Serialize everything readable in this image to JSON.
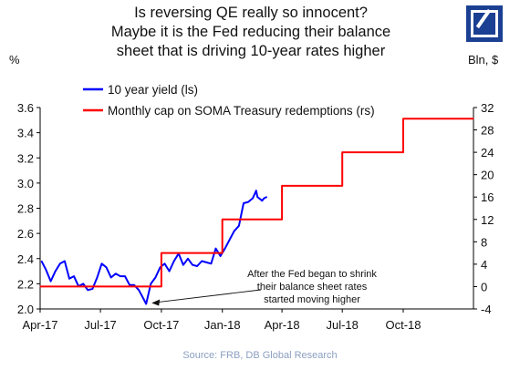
{
  "title_lines": [
    "Is reversing QE really so innocent?",
    "Maybe it is the Fed reducing their balance",
    "sheet that is driving 10-year rates higher"
  ],
  "left_unit": "%",
  "right_unit": "Bln, $",
  "source": "Source: FRB, DB Global Research",
  "logo_icon": "deutsche-bank-logo",
  "colors": {
    "yield": "#0000ff",
    "cap": "#ff0000",
    "logo": "#1a3f93"
  },
  "chart_data": {
    "type": "line",
    "x_tick_labels": [
      "Apr-17",
      "Jul-17",
      "Oct-17",
      "Jan-18",
      "Apr-18",
      "Jul-18",
      "Oct-18"
    ],
    "x_tick_dates": [
      "2017-04-01",
      "2017-07-01",
      "2017-10-01",
      "2018-01-01",
      "2018-04-01",
      "2018-07-01",
      "2018-10-01"
    ],
    "x_range": [
      "2017-04-01",
      "2019-01-15"
    ],
    "y_left": {
      "range": [
        2.0,
        3.6
      ],
      "ticks": [
        "2.0",
        "2.2",
        "2.4",
        "2.6",
        "2.8",
        "3.0",
        "3.2",
        "3.4",
        "3.6"
      ]
    },
    "y_right": {
      "range": [
        -4,
        32
      ],
      "ticks": [
        "-4",
        "0",
        "4",
        "8",
        "12",
        "16",
        "20",
        "24",
        "28",
        "32"
      ]
    },
    "grid": false,
    "legend_position": "top-left",
    "series": [
      {
        "name": "10 year yield (ls)",
        "axis": "left",
        "x": [
          "2017-04-03",
          "2017-04-10",
          "2017-04-17",
          "2017-04-24",
          "2017-05-01",
          "2017-05-08",
          "2017-05-15",
          "2017-05-22",
          "2017-05-29",
          "2017-06-05",
          "2017-06-12",
          "2017-06-19",
          "2017-06-26",
          "2017-07-03",
          "2017-07-10",
          "2017-07-17",
          "2017-07-24",
          "2017-07-31",
          "2017-08-07",
          "2017-08-14",
          "2017-08-21",
          "2017-08-28",
          "2017-09-04",
          "2017-09-08",
          "2017-09-15",
          "2017-09-22",
          "2017-09-29",
          "2017-10-06",
          "2017-10-13",
          "2017-10-20",
          "2017-10-27",
          "2017-11-03",
          "2017-11-10",
          "2017-11-17",
          "2017-11-24",
          "2017-12-01",
          "2017-12-08",
          "2017-12-15",
          "2017-12-22",
          "2017-12-29",
          "2018-01-05",
          "2018-01-12",
          "2018-01-19",
          "2018-01-26",
          "2018-02-02",
          "2018-02-09",
          "2018-02-16",
          "2018-02-21",
          "2018-02-23",
          "2018-03-02",
          "2018-03-05",
          "2018-03-09"
        ],
        "values": [
          2.38,
          2.31,
          2.22,
          2.3,
          2.36,
          2.38,
          2.24,
          2.26,
          2.18,
          2.2,
          2.15,
          2.16,
          2.25,
          2.36,
          2.33,
          2.25,
          2.28,
          2.26,
          2.26,
          2.19,
          2.19,
          2.15,
          2.08,
          2.04,
          2.2,
          2.25,
          2.33,
          2.36,
          2.3,
          2.38,
          2.44,
          2.35,
          2.4,
          2.35,
          2.34,
          2.38,
          2.37,
          2.36,
          2.48,
          2.42,
          2.48,
          2.55,
          2.62,
          2.66,
          2.84,
          2.85,
          2.88,
          2.94,
          2.89,
          2.86,
          2.88,
          2.89
        ]
      },
      {
        "name": "Monthly cap on SOMA Treasury redemptions (rs)",
        "axis": "right",
        "step": true,
        "x": [
          "2017-04-01",
          "2017-10-01",
          "2018-01-01",
          "2018-04-01",
          "2018-07-01",
          "2018-10-01",
          "2019-01-15"
        ],
        "values": [
          0,
          6,
          12,
          18,
          24,
          30,
          30
        ]
      }
    ],
    "annotation": {
      "lines": [
        "After the Fed began to shrink",
        "their balance sheet rates",
        "started moving higher"
      ],
      "arrow_to": {
        "x": "2017-09-08",
        "y": 2.04,
        "axis": "left"
      }
    }
  }
}
